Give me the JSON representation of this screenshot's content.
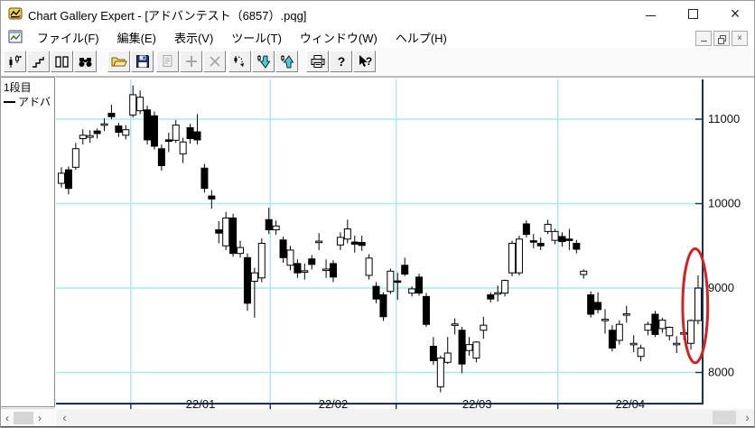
{
  "window": {
    "title": "Chart Gallery Expert - [アドバンテスト（6857）.pqg]",
    "controls": {
      "minimize": "minimize",
      "maximize": "maximize",
      "close_glyph": "×"
    }
  },
  "menubar": {
    "items": [
      {
        "id": "file",
        "label": "ファイル(F)"
      },
      {
        "id": "edit",
        "label": "編集(E)"
      },
      {
        "id": "view",
        "label": "表示(V)"
      },
      {
        "id": "tools",
        "label": "ツール(T)"
      },
      {
        "id": "window",
        "label": "ウィンドウ(W)"
      },
      {
        "id": "help",
        "label": "ヘルプ(H)"
      }
    ],
    "mdi_controls": [
      "minimize",
      "restore",
      "close"
    ],
    "mdi_close_glyph": "×"
  },
  "toolbar": {
    "buttons": [
      {
        "name": "candlestick-chart",
        "x": 3
      },
      {
        "name": "step-chart",
        "x": 29
      },
      {
        "name": "dual-pane",
        "x": 55
      },
      {
        "name": "search-binoculars",
        "x": 81
      },
      {
        "name": "open-file",
        "x": 118
      },
      {
        "name": "save-file",
        "x": 144
      },
      {
        "name": "properties",
        "x": 172,
        "disabled": true
      },
      {
        "name": "add",
        "x": 198,
        "disabled": true
      },
      {
        "name": "delete",
        "x": 224,
        "disabled": true
      },
      {
        "name": "scroll-chart",
        "x": 252
      },
      {
        "name": "shift-down",
        "x": 278
      },
      {
        "name": "shift-up",
        "x": 304
      },
      {
        "name": "print",
        "x": 338
      },
      {
        "name": "help",
        "x": 364,
        "glyph": "?"
      },
      {
        "name": "context-help",
        "x": 390,
        "glyph": "?"
      }
    ]
  },
  "panel": {
    "tier_label": "1段目",
    "legend_label": "アドバ"
  },
  "scrollbar": {
    "left_arrow": "‹",
    "right_arrow": "›"
  },
  "colors": {
    "grid": "#a9e9ee",
    "axis": "#16325c",
    "candle_up_fill": "#ffffff",
    "candle_down_fill": "#000000",
    "annotation": "#d22323",
    "label": "#111111"
  },
  "chart_data": {
    "type": "candlestick",
    "symbol_label": "アドバンテスト（6857）",
    "y_ticks": [
      11000,
      10000,
      9000,
      8000
    ],
    "x_ticks": [
      "22/01",
      "22/02",
      "22/03",
      "22/04"
    ],
    "ylim": [
      7630,
      11450
    ],
    "grid": true,
    "month_grid_positions": [
      9.7,
      29.2,
      46.8,
      69.4
    ],
    "candles": [
      [
        10240,
        10430,
        10190,
        10360
      ],
      [
        10400,
        10440,
        10110,
        10180
      ],
      [
        10430,
        10720,
        10400,
        10650
      ],
      [
        10770,
        10880,
        10700,
        10810
      ],
      [
        10785,
        10870,
        10720,
        10805
      ],
      [
        10860,
        10890,
        10770,
        10830
      ],
      [
        10930,
        11010,
        10860,
        10945
      ],
      [
        11070,
        11170,
        11000,
        11030
      ],
      [
        10920,
        10960,
        10790,
        10845
      ],
      [
        10810,
        10930,
        10760,
        10875
      ],
      [
        11050,
        11400,
        11020,
        11290
      ],
      [
        11100,
        11340,
        11060,
        11260
      ],
      [
        11110,
        11160,
        10700,
        10755
      ],
      [
        11040,
        11090,
        10640,
        10680
      ],
      [
        10650,
        10700,
        10390,
        10450
      ],
      [
        10755,
        10840,
        10610,
        10740
      ],
      [
        10750,
        10990,
        10720,
        10930
      ],
      [
        10590,
        10780,
        10480,
        10730
      ],
      [
        10900,
        10945,
        10710,
        10770
      ],
      [
        10850,
        11060,
        10700,
        10755
      ],
      [
        10420,
        10470,
        10130,
        10180
      ],
      [
        10090,
        10160,
        9940,
        10055
      ],
      [
        9690,
        9790,
        9530,
        9650
      ],
      [
        9500,
        9900,
        9450,
        9830
      ],
      [
        9830,
        9880,
        9370,
        9410
      ],
      [
        9410,
        9560,
        9360,
        9480
      ],
      [
        9360,
        9410,
        8730,
        8820
      ],
      [
        9080,
        9240,
        8650,
        9180
      ],
      [
        9120,
        9590,
        9070,
        9530
      ],
      [
        9810,
        9950,
        9640,
        9690
      ],
      [
        9690,
        9800,
        9630,
        9735
      ],
      [
        9570,
        9610,
        9300,
        9360
      ],
      [
        9270,
        9500,
        9210,
        9450
      ],
      [
        9290,
        9340,
        9120,
        9180
      ],
      [
        9200,
        9290,
        9100,
        9205
      ],
      [
        9345,
        9390,
        9220,
        9280
      ],
      [
        9550,
        9650,
        9450,
        9555
      ],
      [
        9220,
        9340,
        9120,
        9225
      ],
      [
        9290,
        9330,
        9070,
        9130
      ],
      [
        9510,
        9660,
        9450,
        9600
      ],
      [
        9580,
        9810,
        9530,
        9700
      ],
      [
        9545,
        9620,
        9420,
        9520
      ],
      [
        9540,
        9620,
        9440,
        9505
      ],
      [
        9150,
        9400,
        9100,
        9355
      ],
      [
        9020,
        9070,
        8820,
        8870
      ],
      [
        8920,
        8950,
        8610,
        8660
      ],
      [
        8960,
        9230,
        8930,
        9200
      ],
      [
        9085,
        9180,
        8860,
        9070
      ],
      [
        9270,
        9360,
        9140,
        9165
      ],
      [
        8940,
        9020,
        8900,
        8990
      ],
      [
        9130,
        9170,
        8910,
        8940
      ],
      [
        8900,
        8940,
        8540,
        8570
      ],
      [
        8310,
        8420,
        8090,
        8140
      ],
      [
        7830,
        8200,
        7765,
        8170
      ],
      [
        8120,
        8420,
        8100,
        8230
      ],
      [
        8570,
        8640,
        8450,
        8575
      ],
      [
        8500,
        8540,
        7990,
        8100
      ],
      [
        8260,
        8420,
        8200,
        8330
      ],
      [
        8170,
        8370,
        8120,
        8360
      ],
      [
        8500,
        8660,
        8400,
        8560
      ],
      [
        8920,
        8950,
        8830,
        8870
      ],
      [
        8940,
        9030,
        8840,
        8945
      ],
      [
        8940,
        9100,
        8900,
        9090
      ],
      [
        9180,
        9560,
        9140,
        9530
      ],
      [
        9180,
        9620,
        9150,
        9580
      ],
      [
        9760,
        9800,
        9600,
        9635
      ],
      [
        9560,
        9640,
        9470,
        9545
      ],
      [
        9530,
        9600,
        9450,
        9500
      ],
      [
        9670,
        9810,
        9640,
        9755
      ],
      [
        9565,
        9700,
        9520,
        9670
      ],
      [
        9610,
        9660,
        9490,
        9550
      ],
      [
        9580,
        9700,
        9450,
        9570
      ],
      [
        9530,
        9570,
        9410,
        9460
      ],
      [
        9160,
        9220,
        9110,
        9200
      ],
      [
        8920,
        8960,
        8650,
        8690
      ],
      [
        8830,
        8950,
        8700,
        8745
      ],
      [
        8620,
        8750,
        8460,
        8630
      ],
      [
        8500,
        8560,
        8250,
        8290
      ],
      [
        8380,
        8620,
        8330,
        8570
      ],
      [
        8690,
        8790,
        8590,
        8695
      ],
      [
        8340,
        8440,
        8240,
        8345
      ],
      [
        8190,
        8330,
        8130,
        8290
      ],
      [
        8500,
        8600,
        8440,
        8570
      ],
      [
        8690,
        8730,
        8420,
        8450
      ],
      [
        8520,
        8650,
        8470,
        8620
      ],
      [
        8435,
        8545,
        8380,
        8535
      ],
      [
        8340,
        8430,
        8230,
        8345
      ],
      [
        8460,
        8520,
        8390,
        8470
      ],
      [
        8345,
        8630,
        8270,
        8615
      ],
      [
        8615,
        9150,
        8570,
        9000
      ]
    ],
    "annotation": {
      "shape": "ellipse",
      "center_index": 88.6,
      "center_price": 8790,
      "radius_index": 1.75,
      "radius_price": 675,
      "color": "#d22323"
    },
    "legend_position": "left-panel"
  }
}
